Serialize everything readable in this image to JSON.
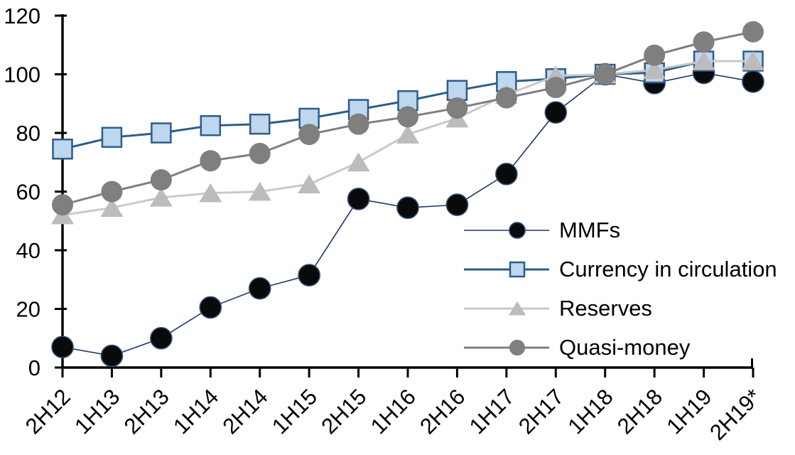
{
  "chart_data": {
    "type": "line",
    "title": "",
    "xlabel": "",
    "ylabel": "",
    "grid": false,
    "legend_position": "inside-right",
    "ylim": [
      0,
      120
    ],
    "yticks": [
      0,
      20,
      40,
      60,
      80,
      100,
      120
    ],
    "categories": [
      "2H12",
      "1H13",
      "2H13",
      "1H14",
      "2H14",
      "1H15",
      "2H15",
      "1H16",
      "2H16",
      "1H17",
      "2H17",
      "1H18",
      "2H18",
      "1H19",
      "2H19*"
    ],
    "series": [
      {
        "name": "MMFs",
        "values": [
          7,
          4,
          10,
          20.5,
          27,
          31.5,
          57.5,
          54.5,
          55.5,
          66,
          87,
          100,
          97,
          100.5,
          97.5
        ],
        "line_color": "#1f3864",
        "line_width": 1.6,
        "marker": "circle",
        "marker_fill": "#0a0a0a",
        "marker_stroke": "#2f4d7c",
        "marker_size": 30
      },
      {
        "name": "Currency in circulation",
        "values": [
          74.5,
          78.5,
          80,
          82.5,
          83,
          85,
          88,
          91,
          94.5,
          97.5,
          98.5,
          100,
          100.5,
          104.5,
          104.5
        ],
        "line_color": "#2e5c8a",
        "line_width": 3,
        "marker": "square",
        "marker_fill": "#bdd7ee",
        "marker_stroke": "#2e5c8a",
        "marker_size": 27
      },
      {
        "name": "Reserves",
        "values": [
          52,
          54.5,
          58,
          59.5,
          60,
          62.5,
          70,
          79.5,
          85,
          93,
          99.5,
          100,
          101.5,
          104.5,
          104.5
        ],
        "line_color": "#c9c9c9",
        "line_width": 3,
        "marker": "triangle",
        "marker_fill": "#bcbcbc",
        "marker_stroke": "none",
        "marker_size": 30
      },
      {
        "name": "Quasi-money",
        "values": [
          55.5,
          60,
          64,
          70.5,
          73,
          79.5,
          83,
          85.5,
          88.5,
          92,
          95.5,
          100,
          106.5,
          111,
          114.5
        ],
        "line_color": "#7f7f7f",
        "line_width": 3,
        "marker": "circle",
        "marker_fill": "#7f7f7f",
        "marker_stroke": "none",
        "marker_size": 30
      }
    ],
    "axis_color": "#000000",
    "tick_label_color": "#000000"
  }
}
